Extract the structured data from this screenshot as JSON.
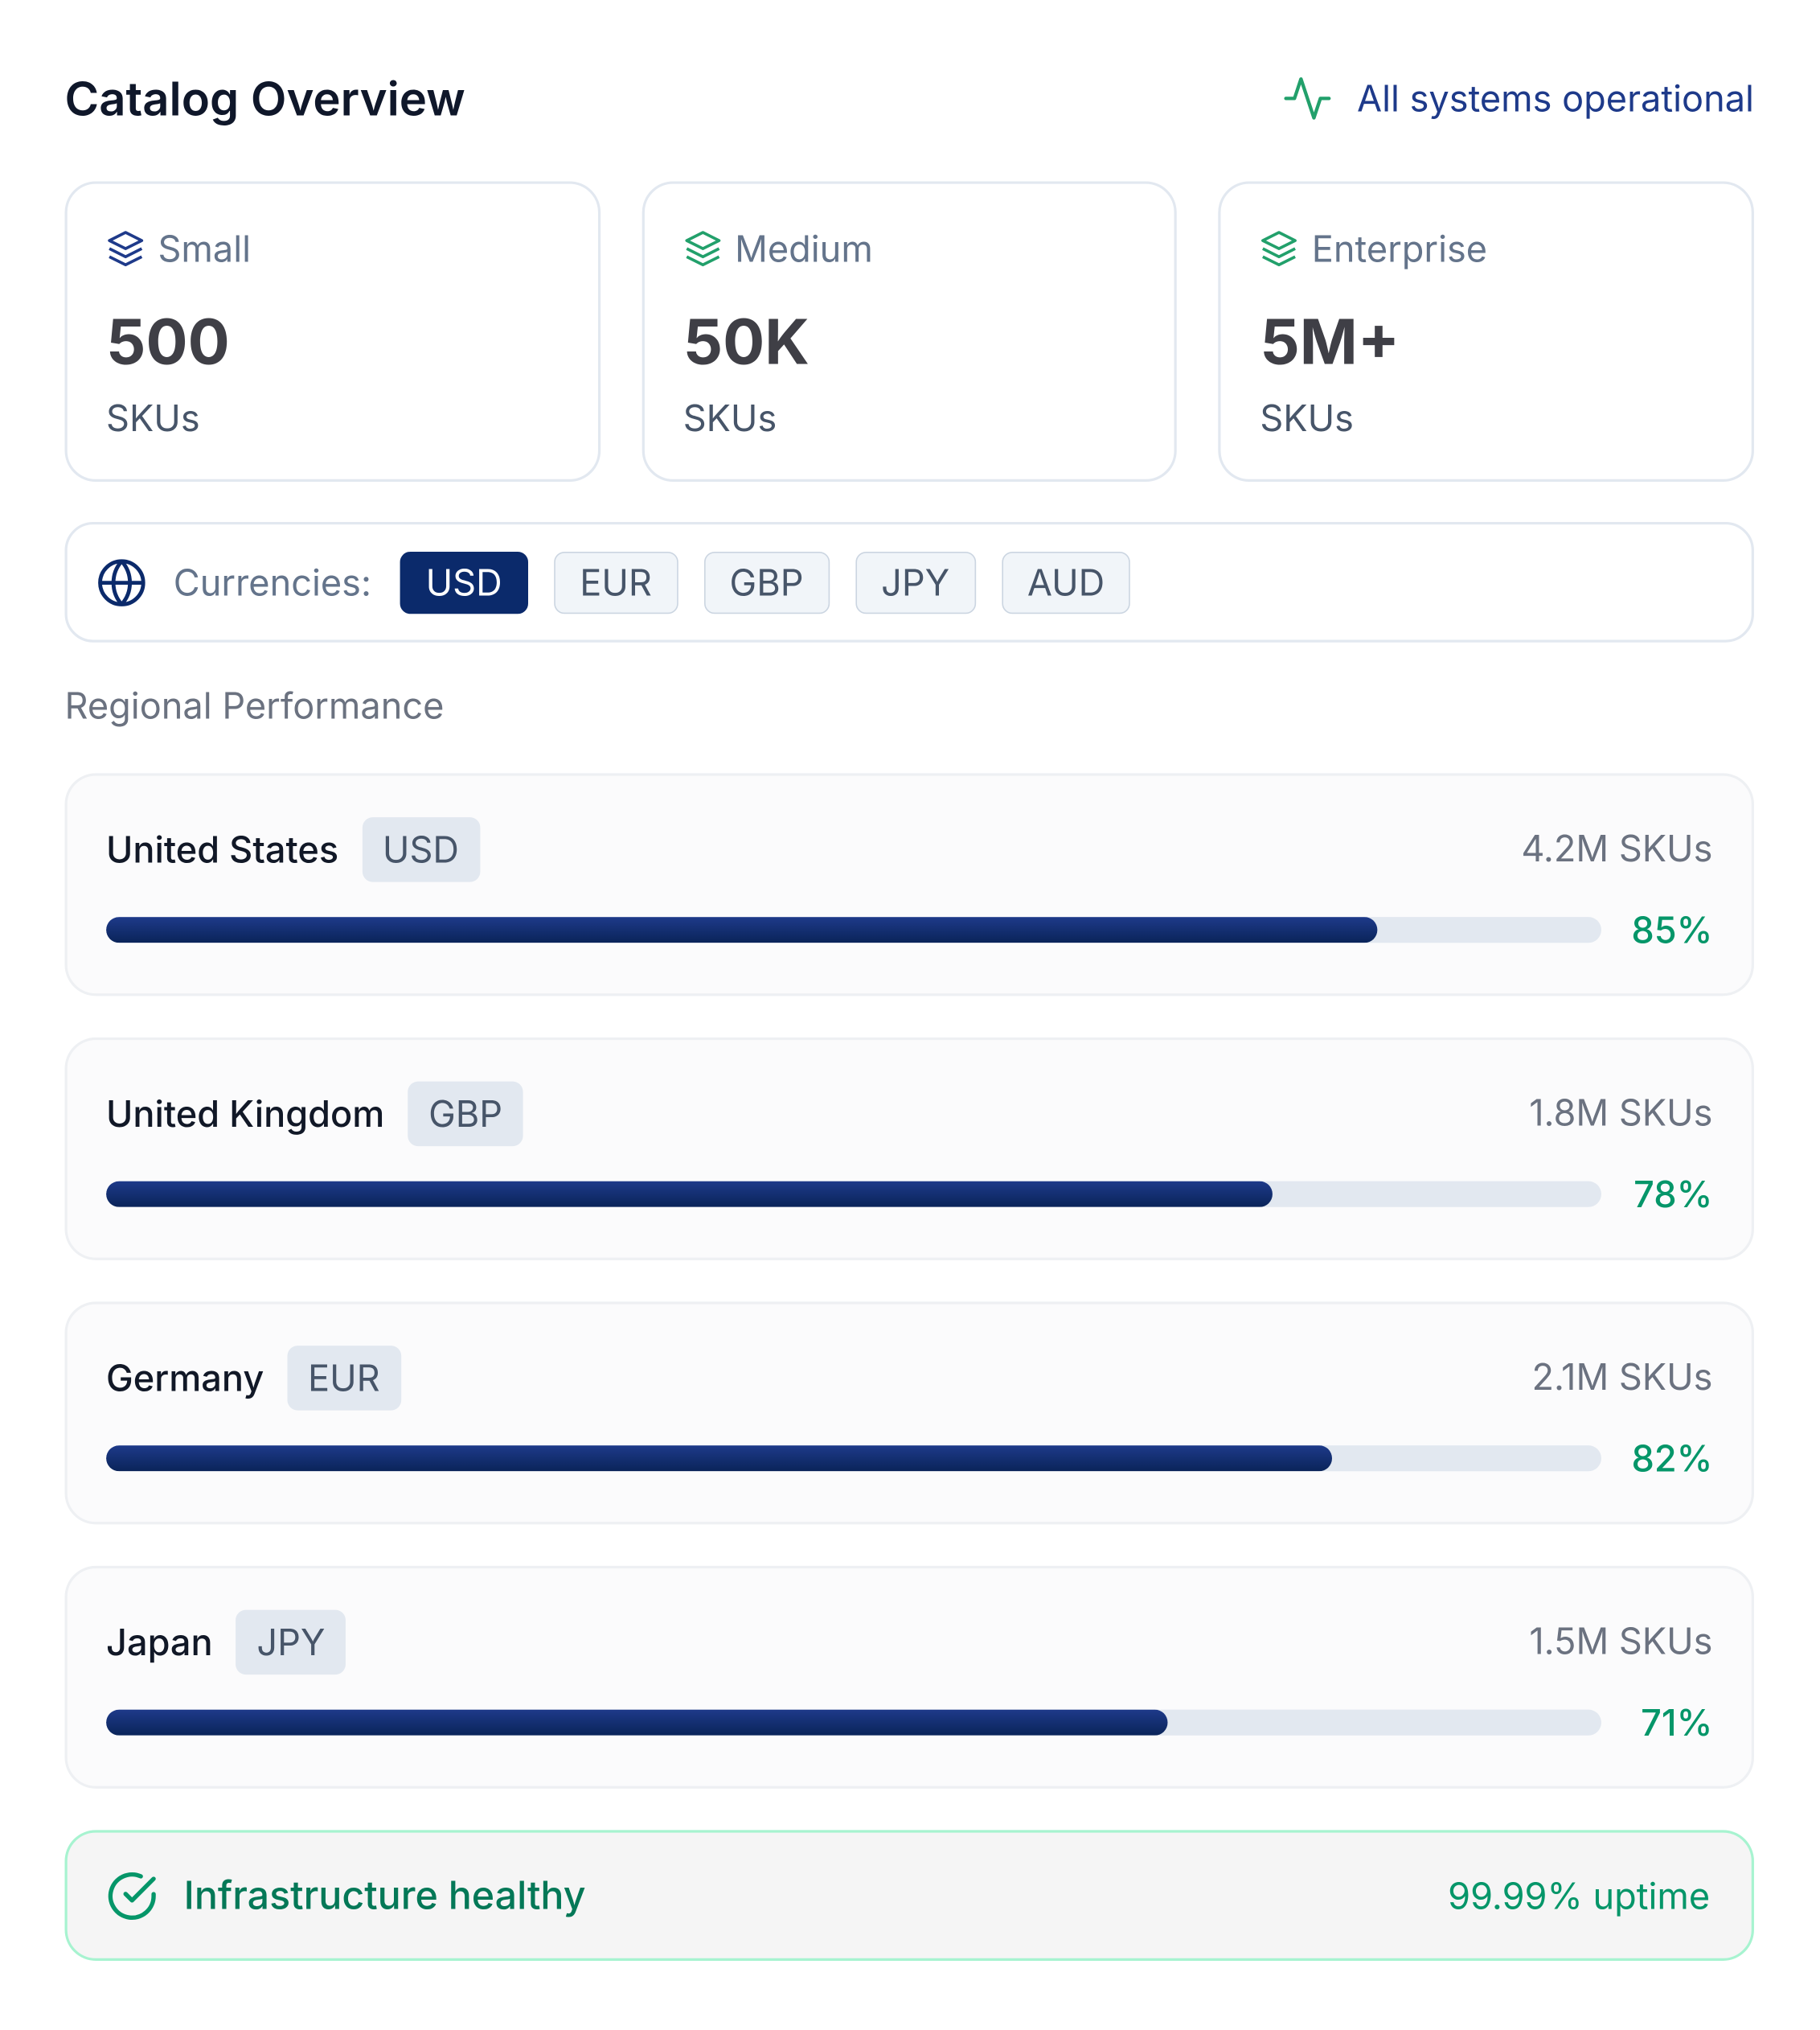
{
  "header": {
    "title": "Catalog Overview",
    "status": "All systems operational"
  },
  "tiers": [
    {
      "label": "Small",
      "value": "500",
      "unit": "SKUs"
    },
    {
      "label": "Medium",
      "value": "50K",
      "unit": "SKUs"
    },
    {
      "label": "Enterprise",
      "value": "5M+",
      "unit": "SKUs"
    }
  ],
  "currencies": {
    "label": "Currencies:",
    "items": [
      "USD",
      "EUR",
      "GBP",
      "JPY",
      "AUD"
    ],
    "selected": "USD"
  },
  "regional": {
    "title": "Regional Performance",
    "regions": [
      {
        "name": "United States",
        "currency": "USD",
        "skus": "4.2M SKUs",
        "percent": 85,
        "percent_label": "85%"
      },
      {
        "name": "United Kingdom",
        "currency": "GBP",
        "skus": "1.8M SKUs",
        "percent": 78,
        "percent_label": "78%"
      },
      {
        "name": "Germany",
        "currency": "EUR",
        "skus": "2.1M SKUs",
        "percent": 82,
        "percent_label": "82%"
      },
      {
        "name": "Japan",
        "currency": "JPY",
        "skus": "1.5M SKUs",
        "percent": 71,
        "percent_label": "71%"
      }
    ]
  },
  "footer": {
    "status": "Infrastructure healthy",
    "uptime": "99.99% uptime"
  }
}
